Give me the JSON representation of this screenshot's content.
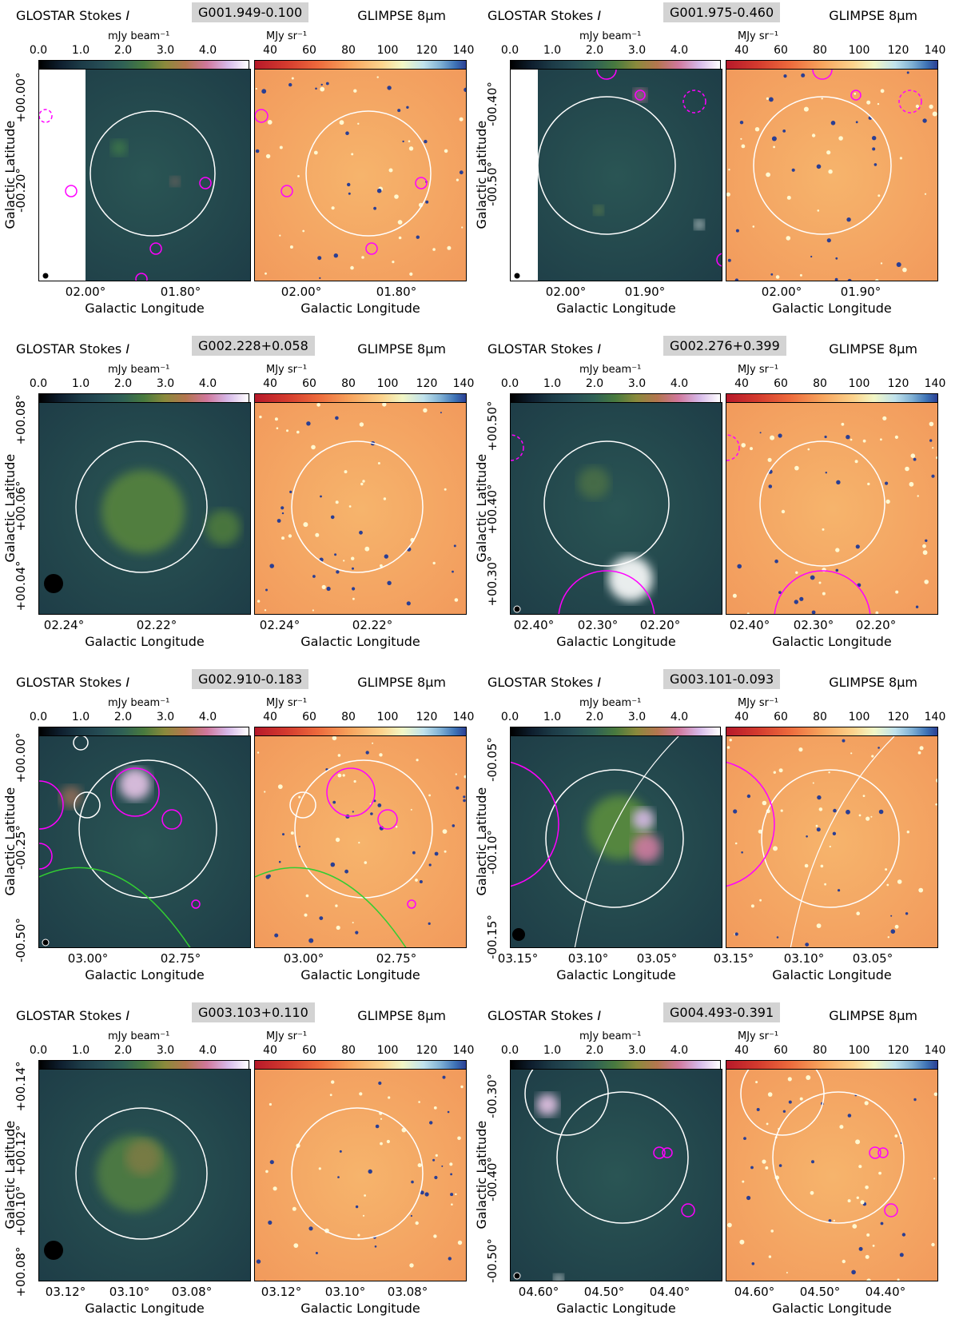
{
  "labels": {
    "glostar_prefix": "GLOSTAR Stokes ",
    "glostar_symbol": "I",
    "glimpse": "GLIMPSE 8μm",
    "left_unit": "mJy beam⁻¹",
    "right_unit": "MJy sr⁻¹",
    "xlabel": "Galactic Longitude",
    "ylabel": "Galactic Latitude"
  },
  "colorbars": {
    "left_ticks": [
      "0.0",
      "1.0",
      "2.0",
      "3.0",
      "4.0"
    ],
    "right_ticks": [
      "40",
      "60",
      "80",
      "100",
      "120",
      "140"
    ]
  },
  "colors": {
    "region_white": "#ffffff",
    "region_magenta": "#ff00ff",
    "region_green": "#32cd32",
    "glostar_bg": "#1e3d47",
    "glimpse_bg": "#f29a5c"
  },
  "panels": [
    {
      "source": "G001.949-0.100",
      "xticks": [
        "02.00°",
        "01.80°"
      ],
      "yticks": [
        "+00.00°",
        "-00.20°"
      ]
    },
    {
      "source": "G001.975-0.460",
      "xticks": [
        "02.00°",
        "01.90°"
      ],
      "yticks": [
        "-00.40°",
        "-00.50°"
      ]
    },
    {
      "source": "G002.228+0.058",
      "xticks": [
        "02.24°",
        "02.22°"
      ],
      "yticks": [
        "+00.08°",
        "+00.06°",
        "+00.04°"
      ]
    },
    {
      "source": "G002.276+0.399",
      "xticks": [
        "02.40°",
        "02.30°",
        "02.20°"
      ],
      "yticks": [
        "+00.50°",
        "+00.40°",
        "+00.30°"
      ]
    },
    {
      "source": "G002.910-0.183",
      "xticks": [
        "03.00°",
        "02.75°"
      ],
      "yticks": [
        "+00.00°",
        "-00.25°",
        "-00.50°"
      ]
    },
    {
      "source": "G003.101-0.093",
      "xticks": [
        "03.15°",
        "03.10°",
        "03.05°"
      ],
      "yticks": [
        "-00.05°",
        "-00.10°",
        "-00.15°"
      ]
    },
    {
      "source": "G003.103+0.110",
      "xticks": [
        "03.12°",
        "03.10°",
        "03.08°"
      ],
      "yticks": [
        "+00.14°",
        "+00.12°",
        "+00.10°",
        "+00.08°"
      ]
    },
    {
      "source": "G004.493-0.391",
      "xticks": [
        "04.60°",
        "04.50°",
        "04.40°"
      ],
      "yticks": [
        "-00.30°",
        "-00.40°",
        "-00.50°"
      ]
    }
  ]
}
